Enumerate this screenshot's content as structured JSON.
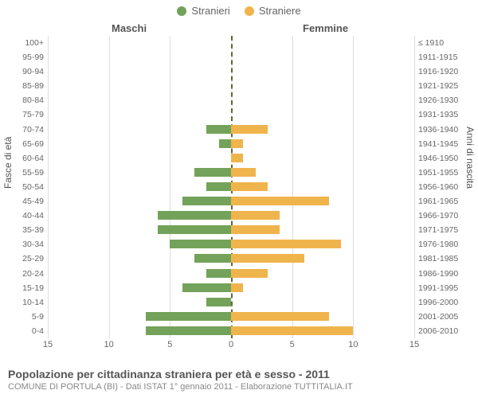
{
  "legend": {
    "male": "Stranieri",
    "female": "Straniere"
  },
  "column_headers": {
    "male": "Maschi",
    "female": "Femmine"
  },
  "axis_titles": {
    "left": "Fasce di età",
    "right": "Anni di nascita"
  },
  "footer": {
    "title": "Popolazione per cittadinanza straniera per età e sesso - 2011",
    "subtitle": "COMUNE DI PORTULA (BI) - Dati ISTAT 1° gennaio 2011 - Elaborazione TUTTITALIA.IT"
  },
  "chart": {
    "type": "population-pyramid",
    "xlim": 15,
    "xticks": [
      15,
      10,
      5,
      0,
      5,
      10,
      15
    ],
    "background_color": "#ffffff",
    "grid_color": "#dddddd",
    "center_line_color": "#666633",
    "colors": {
      "male": "#73a25a",
      "female": "#f0b44c"
    },
    "rows": [
      {
        "age": "100+",
        "birth": "≤ 1910",
        "m": 0,
        "f": 0
      },
      {
        "age": "95-99",
        "birth": "1911-1915",
        "m": 0,
        "f": 0
      },
      {
        "age": "90-94",
        "birth": "1916-1920",
        "m": 0,
        "f": 0
      },
      {
        "age": "85-89",
        "birth": "1921-1925",
        "m": 0,
        "f": 0
      },
      {
        "age": "80-84",
        "birth": "1926-1930",
        "m": 0,
        "f": 0
      },
      {
        "age": "75-79",
        "birth": "1931-1935",
        "m": 0,
        "f": 0
      },
      {
        "age": "70-74",
        "birth": "1936-1940",
        "m": 2,
        "f": 3
      },
      {
        "age": "65-69",
        "birth": "1941-1945",
        "m": 1,
        "f": 1
      },
      {
        "age": "60-64",
        "birth": "1946-1950",
        "m": 0,
        "f": 1
      },
      {
        "age": "55-59",
        "birth": "1951-1955",
        "m": 3,
        "f": 2
      },
      {
        "age": "50-54",
        "birth": "1956-1960",
        "m": 2,
        "f": 3
      },
      {
        "age": "45-49",
        "birth": "1961-1965",
        "m": 4,
        "f": 8
      },
      {
        "age": "40-44",
        "birth": "1966-1970",
        "m": 6,
        "f": 4
      },
      {
        "age": "35-39",
        "birth": "1971-1975",
        "m": 6,
        "f": 4
      },
      {
        "age": "30-34",
        "birth": "1976-1980",
        "m": 5,
        "f": 9
      },
      {
        "age": "25-29",
        "birth": "1981-1985",
        "m": 3,
        "f": 6
      },
      {
        "age": "20-24",
        "birth": "1986-1990",
        "m": 2,
        "f": 3
      },
      {
        "age": "15-19",
        "birth": "1991-1995",
        "m": 4,
        "f": 1
      },
      {
        "age": "10-14",
        "birth": "1996-2000",
        "m": 2,
        "f": 0
      },
      {
        "age": "5-9",
        "birth": "2001-2005",
        "m": 7,
        "f": 8
      },
      {
        "age": "0-4",
        "birth": "2006-2010",
        "m": 7,
        "f": 10
      }
    ]
  }
}
